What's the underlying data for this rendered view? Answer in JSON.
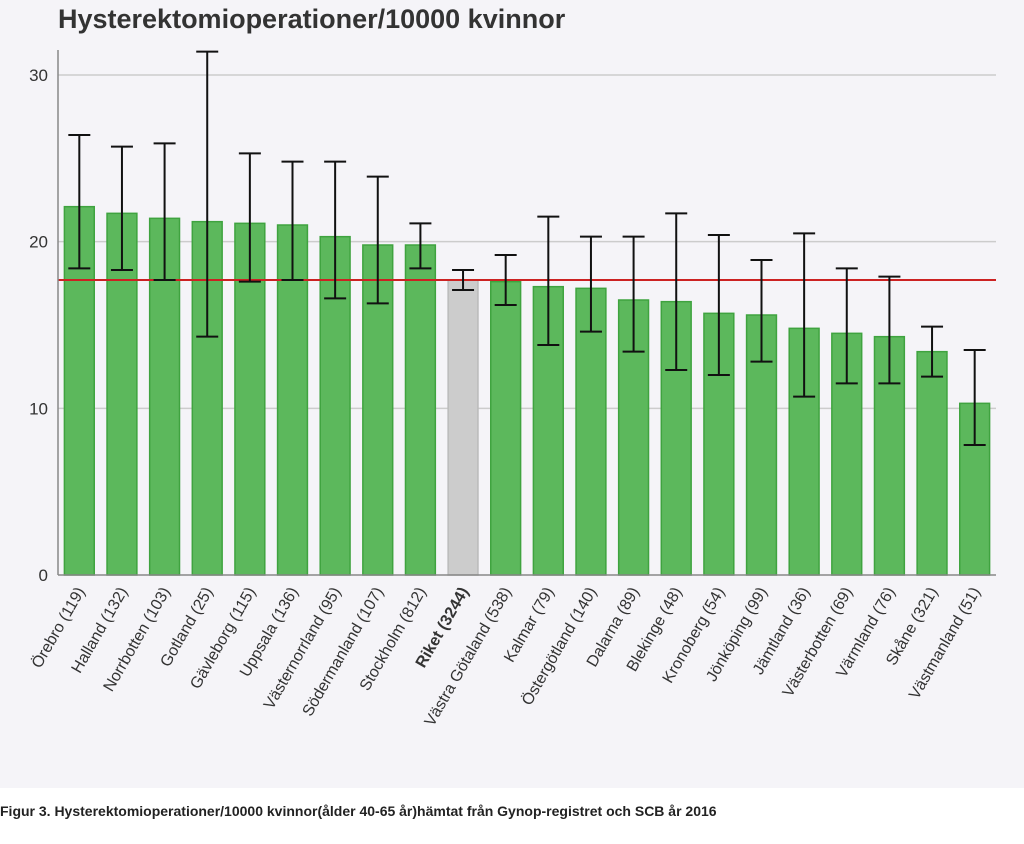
{
  "chart_data": {
    "type": "bar",
    "title": "Hysterektomioperationer/10000 kvinnor",
    "xlabel": "",
    "ylabel": "",
    "ylim": [
      0,
      31.5
    ],
    "yticks": [
      0,
      10,
      20,
      30
    ],
    "grid": true,
    "categories": [
      "Örebro (119)",
      "Halland (132)",
      "Norrbotten (103)",
      "Gotland (25)",
      "Gävleborg (115)",
      "Uppsala (136)",
      "Västernorrland (95)",
      "Södermanland (107)",
      "Stockholm (812)",
      "Riket (3244)",
      "Västra Götaland (538)",
      "Kalmar (79)",
      "Östergötland (140)",
      "Dalarna (89)",
      "Blekinge (48)",
      "Kronoberg (54)",
      "Jönköping (99)",
      "Jämtland (36)",
      "Västerbotten (69)",
      "Värmland (76)",
      "Skåne (321)",
      "Västmanland (51)"
    ],
    "values": [
      22.1,
      21.7,
      21.4,
      21.2,
      21.1,
      21.0,
      20.3,
      19.8,
      19.8,
      17.7,
      17.6,
      17.3,
      17.2,
      16.5,
      16.4,
      15.7,
      15.6,
      14.8,
      14.5,
      14.3,
      13.4,
      10.3
    ],
    "error_low": [
      18.4,
      18.3,
      17.7,
      14.3,
      17.6,
      17.7,
      16.6,
      16.3,
      18.4,
      17.1,
      16.2,
      13.8,
      14.6,
      13.4,
      12.3,
      12.0,
      12.8,
      10.7,
      11.5,
      11.5,
      11.9,
      7.8
    ],
    "error_high": [
      26.4,
      25.7,
      25.9,
      31.4,
      25.3,
      24.8,
      24.8,
      23.9,
      21.1,
      18.3,
      19.2,
      21.5,
      20.3,
      20.3,
      21.7,
      20.4,
      18.9,
      20.5,
      18.4,
      17.9,
      14.9,
      13.5
    ],
    "reference_line": 17.7,
    "highlight_category": "Riket (3244)",
    "colors": {
      "bar": "#5cb85c",
      "bar_border": "#3fa33f",
      "highlight_bar": "#cccccc",
      "highlight_border": "#bbbbbb",
      "reference_line": "#cc2222",
      "error_bar": "#111111",
      "grid": "#cccccc"
    }
  },
  "caption": "Figur 3. Hysterektomioperationer/10000 kvinnor(ålder 40-65 år)hämtat från Gynop-registret och SCB år 2016"
}
